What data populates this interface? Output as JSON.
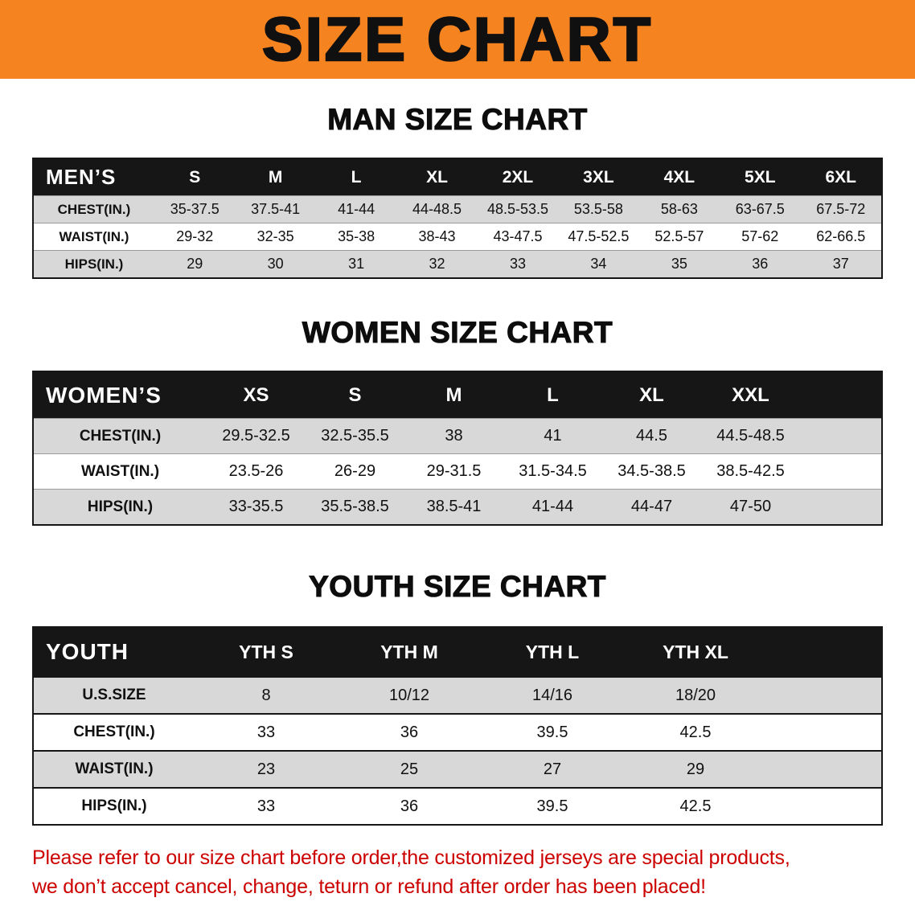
{
  "meta": {
    "banner_bg": "#f5831f",
    "table_header_bg": "#161616",
    "row_gray": "#d8d8d8",
    "note_color": "#cc0000"
  },
  "banner": {
    "title": "SIZE CHART"
  },
  "sections": {
    "men": {
      "heading": "MAN SIZE CHART",
      "table": {
        "corner": "MEN’S",
        "columns": [
          "S",
          "M",
          "L",
          "XL",
          "2XL",
          "3XL",
          "4XL",
          "5XL",
          "6XL"
        ],
        "rows": [
          {
            "label": "CHEST(IN.)",
            "values": [
              "35-37.5",
              "37.5-41",
              "41-44",
              "44-48.5",
              "48.5-53.5",
              "53.5-58",
              "58-63",
              "63-67.5",
              "67.5-72"
            ]
          },
          {
            "label": "WAIST(IN.)",
            "values": [
              "29-32",
              "32-35",
              "35-38",
              "38-43",
              "43-47.5",
              "47.5-52.5",
              "52.5-57",
              "57-62",
              "62-66.5"
            ]
          },
          {
            "label": "HIPS(IN.)",
            "values": [
              "29",
              "30",
              "31",
              "32",
              "33",
              "34",
              "35",
              "36",
              "37"
            ]
          }
        ]
      }
    },
    "women": {
      "heading": "WOMEN SIZE CHART",
      "table": {
        "corner": "WOMEN’S",
        "columns": [
          "XS",
          "S",
          "M",
          "L",
          "XL",
          "XXL"
        ],
        "rows": [
          {
            "label": "CHEST(IN.)",
            "values": [
              "29.5-32.5",
              "32.5-35.5",
              "38",
              "41",
              "44.5",
              "44.5-48.5"
            ]
          },
          {
            "label": "WAIST(IN.)",
            "values": [
              "23.5-26",
              "26-29",
              "29-31.5",
              "31.5-34.5",
              "34.5-38.5",
              "38.5-42.5"
            ]
          },
          {
            "label": "HIPS(IN.)",
            "values": [
              "33-35.5",
              "35.5-38.5",
              "38.5-41",
              "41-44",
              "44-47",
              "47-50"
            ]
          }
        ]
      }
    },
    "youth": {
      "heading": "YOUTH SIZE CHART",
      "table": {
        "corner": "YOUTH",
        "columns": [
          "YTH S",
          "YTH M",
          "YTH L",
          "YTH XL"
        ],
        "rows": [
          {
            "label": "U.S.SIZE",
            "values": [
              "8",
              "10/12",
              "14/16",
              "18/20"
            ]
          },
          {
            "label": "CHEST(IN.)",
            "values": [
              "33",
              "36",
              "39.5",
              "42.5"
            ]
          },
          {
            "label": "WAIST(IN.)",
            "values": [
              "23",
              "25",
              "27",
              "29"
            ]
          },
          {
            "label": "HIPS(IN.)",
            "values": [
              "33",
              "36",
              "39.5",
              "42.5"
            ]
          }
        ]
      }
    }
  },
  "note": {
    "line1": "Please refer to our size chart before order,the customized jerseys are special products,",
    "line2": "we don’t accept cancel, change, teturn or refund after order has been placed!"
  }
}
